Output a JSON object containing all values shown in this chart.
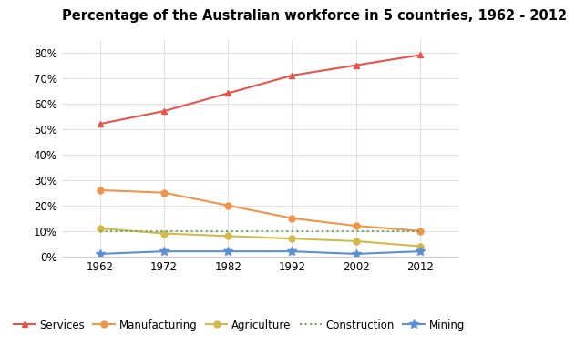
{
  "title": "Percentage of the Australian workforce in 5 countries, 1962 - 2012",
  "years": [
    1962,
    1972,
    1982,
    1992,
    2002,
    2012
  ],
  "series": {
    "Services": {
      "values": [
        52,
        57,
        64,
        71,
        75,
        79
      ],
      "color": "#e8524a",
      "marker": "^",
      "linestyle": "-"
    },
    "Manufacturing": {
      "values": [
        26,
        25,
        20,
        15,
        12,
        10
      ],
      "color": "#f0944a",
      "marker": "o",
      "linestyle": "-"
    },
    "Agriculture": {
      "values": [
        11,
        9,
        8,
        7,
        6,
        4
      ],
      "color": "#d4b84a",
      "marker": "o",
      "linestyle": "-"
    },
    "Construction": {
      "values": [
        10,
        10,
        10,
        10,
        10,
        10
      ],
      "color": "#6aaa5a",
      "marker": null,
      "linestyle": ":"
    },
    "Mining": {
      "values": [
        1,
        2,
        2,
        2,
        1,
        2
      ],
      "color": "#5b8ed6",
      "marker": "*",
      "linestyle": "-"
    }
  },
  "ylim": [
    0,
    85
  ],
  "yticks": [
    0,
    10,
    20,
    30,
    40,
    50,
    60,
    70,
    80
  ],
  "background_color": "#ffffff",
  "grid_color": "#e0e0e0",
  "title_fontsize": 10.5,
  "legend_fontsize": 8.5,
  "tick_fontsize": 8.5
}
